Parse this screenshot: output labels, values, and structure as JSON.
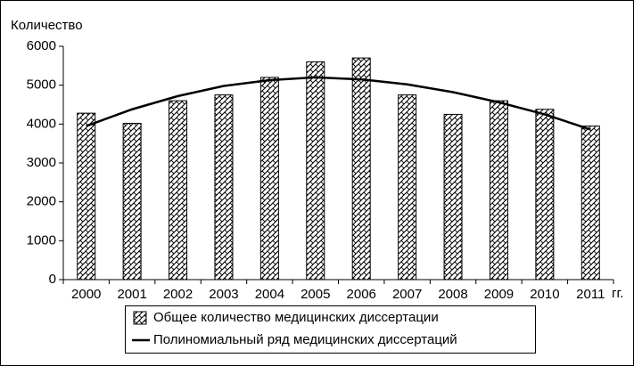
{
  "chart_data": {
    "type": "bar",
    "y_label": "Количество",
    "x_unit": "гг.",
    "categories": [
      "2000",
      "2001",
      "2002",
      "2003",
      "2004",
      "2005",
      "2006",
      "2007",
      "2008",
      "2009",
      "2010",
      "2011"
    ],
    "series": [
      {
        "name": "Общее количество медицинских диссертации",
        "type": "bar",
        "color": "#000000",
        "values": [
          4280,
          4020,
          4600,
          4750,
          5200,
          5600,
          5700,
          4750,
          4250,
          4600,
          4380,
          3950
        ]
      },
      {
        "name": "Полиномиальный ряд медицинских диссертаций",
        "type": "line",
        "color": "#000000",
        "values": [
          3950,
          4380,
          4720,
          4980,
          5130,
          5200,
          5150,
          5020,
          4820,
          4560,
          4250,
          3860
        ]
      }
    ],
    "ylim": [
      0,
      6000
    ],
    "yticks": [
      0,
      1000,
      2000,
      3000,
      4000,
      5000,
      6000
    ],
    "grid": false,
    "legend": "bottom"
  }
}
